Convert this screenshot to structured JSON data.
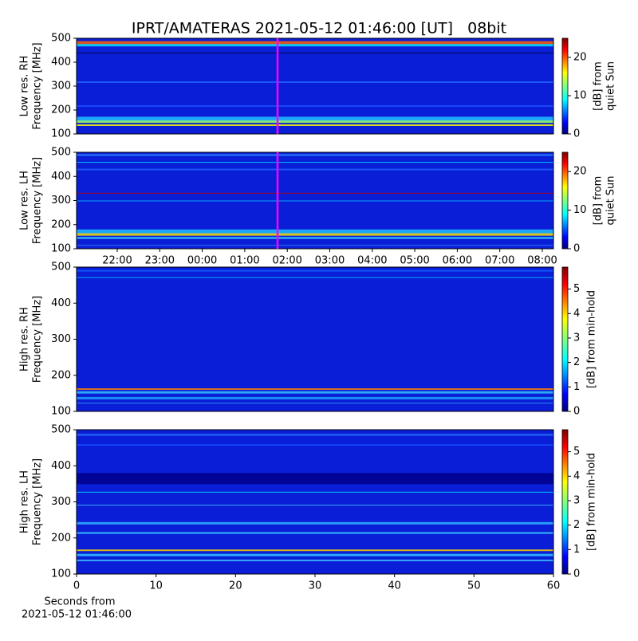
{
  "title": "IPRT/AMATERAS 2021-05-12 01:46:00 [UT]   08bit",
  "chart_data": [
    {
      "type": "heatmap",
      "ylabel": [
        "Low res. RH",
        "Frequency [MHz]"
      ],
      "ylim": [
        100,
        500
      ],
      "yticks": [
        100,
        200,
        300,
        400,
        500
      ],
      "colorbar_label": [
        "[dB] from",
        "quiet Sun"
      ],
      "clim": [
        0,
        25
      ],
      "cticks": [
        0,
        10,
        20
      ]
    },
    {
      "type": "heatmap",
      "ylabel": [
        "Low res. LH",
        "Frequency [MHz]"
      ],
      "ylim": [
        100,
        500
      ],
      "yticks": [
        100,
        200,
        300,
        400,
        500
      ],
      "colorbar_label": [
        "[dB] from",
        "quiet Sun"
      ],
      "clim": [
        0,
        25
      ],
      "cticks": [
        0,
        10,
        20
      ],
      "time_labels": [
        "22:00",
        "23:00",
        "00:00",
        "01:00",
        "02:00",
        "03:00",
        "04:00",
        "05:00",
        "06:00",
        "07:00",
        "08:00"
      ]
    },
    {
      "type": "heatmap",
      "ylabel": [
        "High res. RH",
        "Frequency [MHz]"
      ],
      "ylim": [
        100,
        500
      ],
      "yticks": [
        100,
        200,
        300,
        400,
        500
      ],
      "colorbar_label": [
        "[dB] from min-hold"
      ],
      "clim": [
        0,
        5.9
      ],
      "cticks": [
        0,
        1,
        2,
        3,
        4,
        5
      ]
    },
    {
      "type": "heatmap",
      "ylabel": [
        "High res. LH",
        "Frequency [MHz]"
      ],
      "ylim": [
        100,
        500
      ],
      "yticks": [
        100,
        200,
        300,
        400,
        500
      ],
      "colorbar_label": [
        "[dB] from min-hold"
      ],
      "clim": [
        0,
        5.9
      ],
      "cticks": [
        0,
        1,
        2,
        3,
        4,
        5
      ],
      "xlim": [
        0,
        60
      ],
      "xticks": [
        0,
        10,
        20,
        30,
        40,
        50,
        60
      ],
      "xlabel": [
        "Seconds from",
        "2021-05-12 01:46:00"
      ]
    }
  ]
}
